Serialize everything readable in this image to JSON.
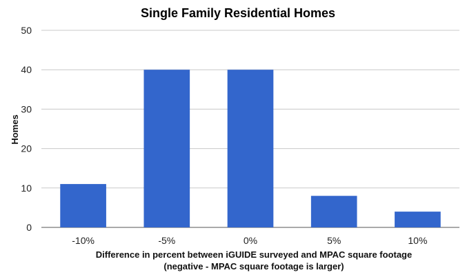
{
  "chart_data": {
    "type": "bar",
    "title": "Single Family Residential Homes",
    "xlabel": "Difference in percent between iGUIDE surveyed and MPAC square footage",
    "xlabel_line2": "(negative - MPAC square footage is larger)",
    "ylabel": "Homes",
    "categories": [
      "-10%",
      "-5%",
      "0%",
      "5%",
      "10%"
    ],
    "values": [
      11,
      40,
      40,
      8,
      4
    ],
    "ylim": [
      0,
      50
    ],
    "yticks": [
      0,
      10,
      20,
      30,
      40,
      50
    ],
    "grid": true,
    "legend": "none",
    "bar_color": "#3366cc"
  }
}
